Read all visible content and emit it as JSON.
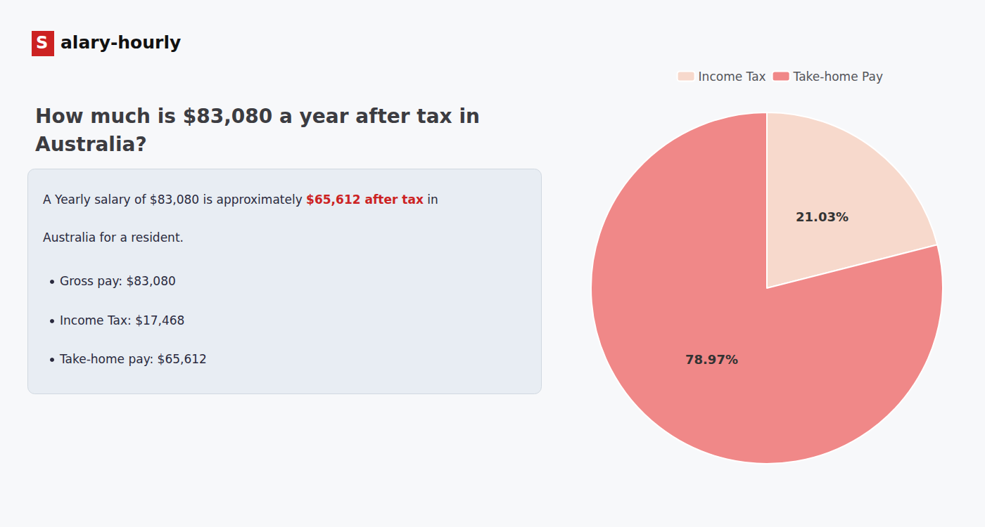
{
  "chart_data": {
    "type": "pie",
    "title": "How much is $83,080 a year after tax in\nAustralia?",
    "categories": [
      "Income Tax",
      "Take-home Pay"
    ],
    "values": [
      21.03,
      78.97
    ],
    "value_labels": [
      "21.03%",
      "78.97%"
    ],
    "colors": [
      "#f7d9cc",
      "#f08888"
    ],
    "data_labels": true,
    "legend": "top",
    "annotations": [
      {
        "text": "S",
        "color": "#cc2222"
      },
      {
        "text": "alary-hourly"
      },
      {
        "text": "A Yearly salary of $83,080 is approximately "
      },
      {
        "text": "$65,612 after tax",
        "color": "#cc2222"
      },
      {
        "text": " in"
      },
      {
        "text": "Australia for a resident."
      },
      {
        "text": "Gross pay: $83,080"
      },
      {
        "text": "Income Tax: $17,468"
      },
      {
        "text": "Take-home pay: $65,612"
      }
    ]
  }
}
